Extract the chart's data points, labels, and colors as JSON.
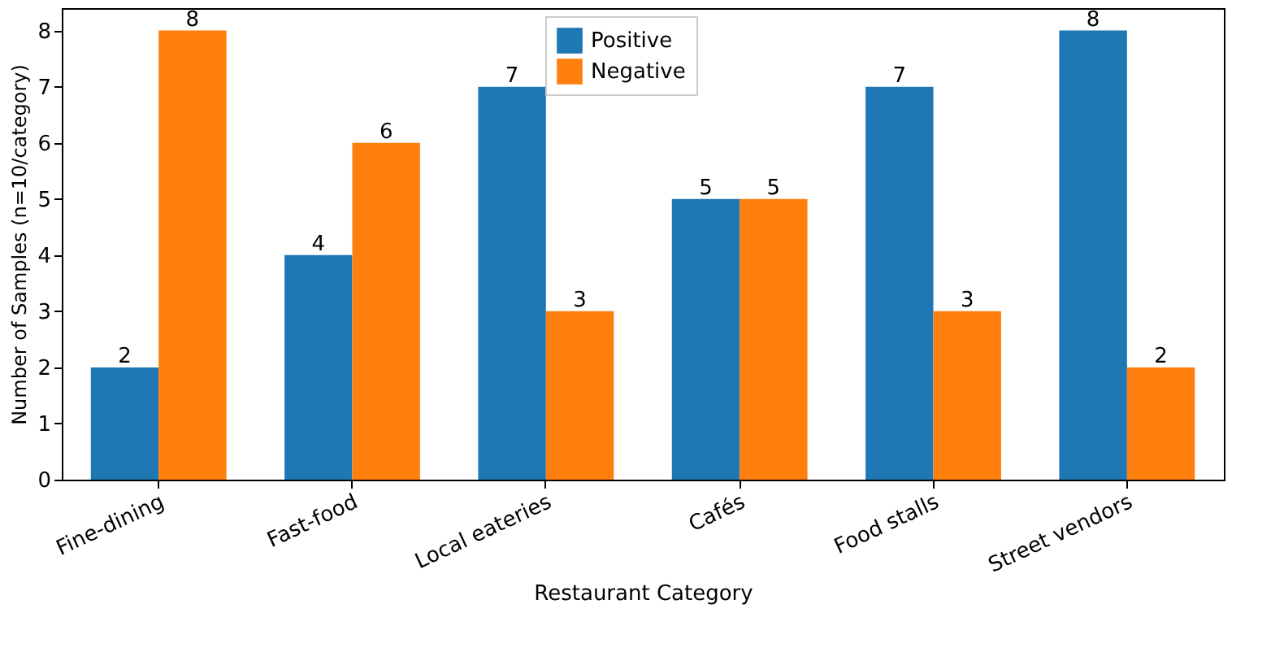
{
  "chart_data": {
    "type": "bar",
    "xlabel": "Restaurant Category",
    "ylabel": "Number of Samples (n=10/category)",
    "categories": [
      "Fine-dining",
      "Fast-food",
      "Local eateries",
      "Cafés",
      "Food stalls",
      "Street vendors"
    ],
    "series": [
      {
        "name": "Positive",
        "color": "#1f77b4",
        "values": [
          2,
          4,
          7,
          5,
          7,
          8
        ]
      },
      {
        "name": "Negative",
        "color": "#ff7f0e",
        "values": [
          8,
          6,
          3,
          5,
          3,
          2
        ]
      }
    ],
    "ylim": [
      0,
      8.4
    ],
    "yticks": [
      0,
      1,
      2,
      3,
      4,
      5,
      6,
      7,
      8
    ],
    "data_labels": true,
    "legend": "top",
    "grid": false
  }
}
